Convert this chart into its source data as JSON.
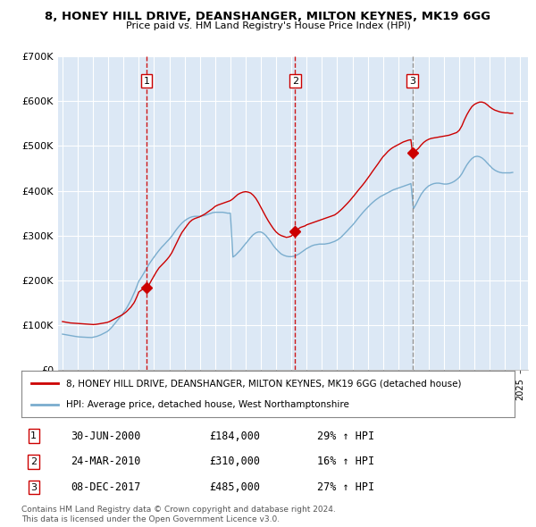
{
  "title": "8, HONEY HILL DRIVE, DEANSHANGER, MILTON KEYNES, MK19 6GG",
  "subtitle": "Price paid vs. HM Land Registry's House Price Index (HPI)",
  "legend_label_red": "8, HONEY HILL DRIVE, DEANSHANGER, MILTON KEYNES, MK19 6GG (detached house)",
  "legend_label_blue": "HPI: Average price, detached house, West Northamptonshire",
  "footer1": "Contains HM Land Registry data © Crown copyright and database right 2024.",
  "footer2": "This data is licensed under the Open Government Licence v3.0.",
  "sales": [
    {
      "num": 1,
      "date": "30-JUN-2000",
      "price": "£184,000",
      "hpi": "29% ↑ HPI",
      "year": 2000.5,
      "price_val": 184000,
      "vline_style": "red_dashed"
    },
    {
      "num": 2,
      "date": "24-MAR-2010",
      "price": "£310,000",
      "hpi": "16% ↑ HPI",
      "year": 2010.25,
      "price_val": 310000,
      "vline_style": "red_dashed"
    },
    {
      "num": 3,
      "date": "08-DEC-2017",
      "price": "£485,000",
      "hpi": "27% ↑ HPI",
      "year": 2017.93,
      "price_val": 485000,
      "vline_style": "gray_dashed"
    }
  ],
  "red_color": "#cc0000",
  "blue_color": "#7aadce",
  "vline_red_color": "#cc0000",
  "vline_gray_color": "#888888",
  "chart_bg_color": "#dce8f5",
  "background_color": "#ffffff",
  "grid_color": "#ffffff",
  "ylim": [
    0,
    700000
  ],
  "xlim_start": 1994.7,
  "xlim_end": 2025.5,
  "red_x": [
    1995.0,
    1995.08,
    1995.17,
    1995.25,
    1995.33,
    1995.42,
    1995.5,
    1995.58,
    1995.67,
    1995.75,
    1995.83,
    1995.92,
    1996.0,
    1996.08,
    1996.17,
    1996.25,
    1996.33,
    1996.42,
    1996.5,
    1996.58,
    1996.67,
    1996.75,
    1996.83,
    1996.92,
    1997.0,
    1997.08,
    1997.17,
    1997.25,
    1997.33,
    1997.42,
    1997.5,
    1997.58,
    1997.67,
    1997.75,
    1997.83,
    1997.92,
    1998.0,
    1998.08,
    1998.17,
    1998.25,
    1998.33,
    1998.42,
    1998.5,
    1998.58,
    1998.67,
    1998.75,
    1998.83,
    1998.92,
    1999.0,
    1999.08,
    1999.17,
    1999.25,
    1999.33,
    1999.42,
    1999.5,
    1999.58,
    1999.67,
    1999.75,
    1999.83,
    1999.92,
    2000.0,
    2000.08,
    2000.17,
    2000.25,
    2000.33,
    2000.42,
    2000.5,
    2000.67,
    2000.83,
    2001.0,
    2001.17,
    2001.33,
    2001.5,
    2001.67,
    2001.83,
    2002.0,
    2002.17,
    2002.33,
    2002.5,
    2002.67,
    2002.83,
    2003.0,
    2003.17,
    2003.33,
    2003.5,
    2003.67,
    2003.83,
    2004.0,
    2004.17,
    2004.33,
    2004.5,
    2004.67,
    2004.83,
    2005.0,
    2005.17,
    2005.33,
    2005.5,
    2005.67,
    2005.83,
    2006.0,
    2006.17,
    2006.33,
    2006.5,
    2006.67,
    2006.83,
    2007.0,
    2007.17,
    2007.33,
    2007.5,
    2007.67,
    2007.83,
    2008.0,
    2008.17,
    2008.33,
    2008.5,
    2008.67,
    2008.83,
    2009.0,
    2009.17,
    2009.33,
    2009.5,
    2009.67,
    2009.83,
    2010.0,
    2010.08,
    2010.17,
    2010.25,
    2010.42,
    2010.58,
    2010.75,
    2010.92,
    2011.0,
    2011.17,
    2011.33,
    2011.5,
    2011.67,
    2011.83,
    2012.0,
    2012.17,
    2012.33,
    2012.5,
    2012.67,
    2012.83,
    2013.0,
    2013.17,
    2013.33,
    2013.5,
    2013.67,
    2013.83,
    2014.0,
    2014.17,
    2014.33,
    2014.5,
    2014.67,
    2014.83,
    2015.0,
    2015.17,
    2015.33,
    2015.5,
    2015.67,
    2015.83,
    2016.0,
    2016.17,
    2016.33,
    2016.5,
    2016.67,
    2016.83,
    2017.0,
    2017.17,
    2017.33,
    2017.5,
    2017.67,
    2017.83,
    2017.93,
    2018.0,
    2018.17,
    2018.33,
    2018.5,
    2018.67,
    2018.83,
    2019.0,
    2019.17,
    2019.33,
    2019.5,
    2019.67,
    2019.83,
    2020.0,
    2020.17,
    2020.33,
    2020.5,
    2020.67,
    2020.83,
    2021.0,
    2021.17,
    2021.33,
    2021.5,
    2021.67,
    2021.83,
    2022.0,
    2022.17,
    2022.33,
    2022.5,
    2022.67,
    2022.83,
    2023.0,
    2023.17,
    2023.33,
    2023.5,
    2023.67,
    2023.83,
    2024.0,
    2024.17,
    2024.33,
    2024.5
  ],
  "red_y": [
    108000,
    107500,
    107000,
    106500,
    106000,
    105500,
    105000,
    104800,
    104600,
    104400,
    104200,
    104000,
    103800,
    103600,
    103400,
    103200,
    103000,
    102800,
    102600,
    102400,
    102200,
    102000,
    101800,
    101600,
    101400,
    101500,
    101700,
    102000,
    102500,
    103000,
    103500,
    104000,
    104500,
    105000,
    105500,
    106000,
    107000,
    108000,
    109500,
    111000,
    112500,
    114000,
    115500,
    117000,
    118500,
    120000,
    121500,
    123000,
    125000,
    127000,
    129500,
    132000,
    135000,
    138000,
    141000,
    145000,
    149000,
    154000,
    160000,
    167000,
    174000,
    176000,
    178000,
    180000,
    182000,
    183000,
    184000,
    190000,
    200000,
    210000,
    220000,
    228000,
    234000,
    240000,
    246000,
    253000,
    262000,
    273000,
    285000,
    297000,
    307000,
    315000,
    323000,
    330000,
    335000,
    338000,
    340000,
    342000,
    345000,
    348000,
    352000,
    356000,
    360000,
    365000,
    368000,
    370000,
    372000,
    374000,
    376000,
    378000,
    382000,
    387000,
    392000,
    395000,
    397000,
    398000,
    397000,
    395000,
    390000,
    383000,
    374000,
    363000,
    352000,
    342000,
    332000,
    323000,
    315000,
    308000,
    303000,
    300000,
    298000,
    296000,
    297000,
    299000,
    302000,
    306000,
    310000,
    314000,
    318000,
    320000,
    322000,
    324000,
    326000,
    328000,
    330000,
    332000,
    334000,
    336000,
    338000,
    340000,
    342000,
    344000,
    346000,
    350000,
    355000,
    360000,
    366000,
    372000,
    378000,
    385000,
    392000,
    399000,
    406000,
    413000,
    420000,
    428000,
    436000,
    444000,
    452000,
    460000,
    468000,
    476000,
    482000,
    488000,
    493000,
    497000,
    500000,
    503000,
    506000,
    509000,
    511000,
    513000,
    514000,
    485000,
    487000,
    490000,
    495000,
    502000,
    508000,
    512000,
    515000,
    517000,
    518000,
    519000,
    520000,
    521000,
    522000,
    523000,
    524000,
    526000,
    528000,
    530000,
    535000,
    545000,
    558000,
    570000,
    580000,
    588000,
    593000,
    596000,
    598000,
    598000,
    596000,
    592000,
    587000,
    583000,
    580000,
    578000,
    576000,
    575000,
    574000,
    574000,
    573000,
    573000
  ],
  "blue_x": [
    1995.0,
    1995.08,
    1995.17,
    1995.25,
    1995.33,
    1995.42,
    1995.5,
    1995.58,
    1995.67,
    1995.75,
    1995.83,
    1995.92,
    1996.0,
    1996.08,
    1996.17,
    1996.25,
    1996.33,
    1996.42,
    1996.5,
    1996.58,
    1996.67,
    1996.75,
    1996.83,
    1996.92,
    1997.0,
    1997.08,
    1997.17,
    1997.25,
    1997.33,
    1997.42,
    1997.5,
    1997.58,
    1997.67,
    1997.75,
    1997.83,
    1997.92,
    1998.0,
    1998.08,
    1998.17,
    1998.25,
    1998.33,
    1998.42,
    1998.5,
    1998.58,
    1998.67,
    1998.75,
    1998.83,
    1998.92,
    1999.0,
    1999.08,
    1999.17,
    1999.25,
    1999.33,
    1999.42,
    1999.5,
    1999.58,
    1999.67,
    1999.75,
    1999.83,
    1999.92,
    2000.0,
    2000.17,
    2000.33,
    2000.5,
    2000.67,
    2000.83,
    2001.0,
    2001.17,
    2001.33,
    2001.5,
    2001.67,
    2001.83,
    2002.0,
    2002.17,
    2002.33,
    2002.5,
    2002.67,
    2002.83,
    2003.0,
    2003.17,
    2003.33,
    2003.5,
    2003.67,
    2003.83,
    2004.0,
    2004.17,
    2004.33,
    2004.5,
    2004.67,
    2004.83,
    2005.0,
    2005.17,
    2005.33,
    2005.5,
    2005.67,
    2005.83,
    2006.0,
    2006.17,
    2006.33,
    2006.5,
    2006.67,
    2006.83,
    2007.0,
    2007.17,
    2007.33,
    2007.5,
    2007.67,
    2007.83,
    2008.0,
    2008.17,
    2008.33,
    2008.5,
    2008.67,
    2008.83,
    2009.0,
    2009.17,
    2009.33,
    2009.5,
    2009.67,
    2009.83,
    2010.0,
    2010.17,
    2010.33,
    2010.5,
    2010.67,
    2010.83,
    2011.0,
    2011.17,
    2011.33,
    2011.5,
    2011.67,
    2011.83,
    2012.0,
    2012.17,
    2012.33,
    2012.5,
    2012.67,
    2012.83,
    2013.0,
    2013.17,
    2013.33,
    2013.5,
    2013.67,
    2013.83,
    2014.0,
    2014.17,
    2014.33,
    2014.5,
    2014.67,
    2014.83,
    2015.0,
    2015.17,
    2015.33,
    2015.5,
    2015.67,
    2015.83,
    2016.0,
    2016.17,
    2016.33,
    2016.5,
    2016.67,
    2016.83,
    2017.0,
    2017.17,
    2017.33,
    2017.5,
    2017.67,
    2017.83,
    2018.0,
    2018.17,
    2018.33,
    2018.5,
    2018.67,
    2018.83,
    2019.0,
    2019.17,
    2019.33,
    2019.5,
    2019.67,
    2019.83,
    2020.0,
    2020.17,
    2020.33,
    2020.5,
    2020.67,
    2020.83,
    2021.0,
    2021.17,
    2021.33,
    2021.5,
    2021.67,
    2021.83,
    2022.0,
    2022.17,
    2022.33,
    2022.5,
    2022.67,
    2022.83,
    2023.0,
    2023.17,
    2023.33,
    2023.5,
    2023.67,
    2023.83,
    2024.0,
    2024.17,
    2024.33,
    2024.5
  ],
  "blue_y": [
    80000,
    79500,
    79000,
    78500,
    78000,
    77500,
    77000,
    76500,
    76000,
    75500,
    75000,
    74500,
    74000,
    73800,
    73600,
    73400,
    73200,
    73000,
    72900,
    72800,
    72700,
    72600,
    72500,
    72400,
    73000,
    73500,
    74200,
    75000,
    76000,
    77000,
    78200,
    79500,
    81000,
    82500,
    84000,
    85500,
    87500,
    90000,
    93000,
    96000,
    99500,
    103000,
    106500,
    110000,
    113500,
    117000,
    120500,
    124000,
    128000,
    132000,
    136500,
    141000,
    146000,
    151500,
    157000,
    163000,
    169500,
    176000,
    183000,
    190500,
    198000,
    207000,
    216000,
    226000,
    236000,
    244000,
    252000,
    260000,
    267000,
    274000,
    280000,
    286000,
    292000,
    299000,
    307000,
    315000,
    322000,
    328000,
    333000,
    337000,
    340000,
    342000,
    343000,
    343000,
    343000,
    344000,
    345000,
    347000,
    349000,
    351000,
    352000,
    352000,
    352000,
    352000,
    351000,
    350000,
    350000,
    252000,
    256000,
    262000,
    268000,
    275000,
    282000,
    289000,
    296000,
    302000,
    306000,
    308000,
    308000,
    305000,
    300000,
    293000,
    285000,
    277000,
    270000,
    264000,
    259000,
    256000,
    254000,
    253000,
    253000,
    254000,
    256000,
    259000,
    263000,
    267000,
    271000,
    274000,
    277000,
    279000,
    280000,
    281000,
    281000,
    281000,
    282000,
    283000,
    285000,
    287000,
    290000,
    294000,
    299000,
    305000,
    311000,
    317000,
    323000,
    330000,
    337000,
    344000,
    351000,
    357000,
    363000,
    369000,
    374000,
    379000,
    383000,
    387000,
    390000,
    393000,
    396000,
    399000,
    402000,
    404000,
    406000,
    408000,
    410000,
    412000,
    414000,
    416000,
    360000,
    370000,
    381000,
    392000,
    400000,
    406000,
    411000,
    414000,
    416000,
    417000,
    417000,
    416000,
    415000,
    415000,
    416000,
    418000,
    421000,
    425000,
    430000,
    438000,
    448000,
    458000,
    466000,
    472000,
    476000,
    477000,
    476000,
    473000,
    468000,
    462000,
    456000,
    450000,
    446000,
    443000,
    441000,
    440000,
    440000,
    440000,
    440000,
    441000
  ]
}
